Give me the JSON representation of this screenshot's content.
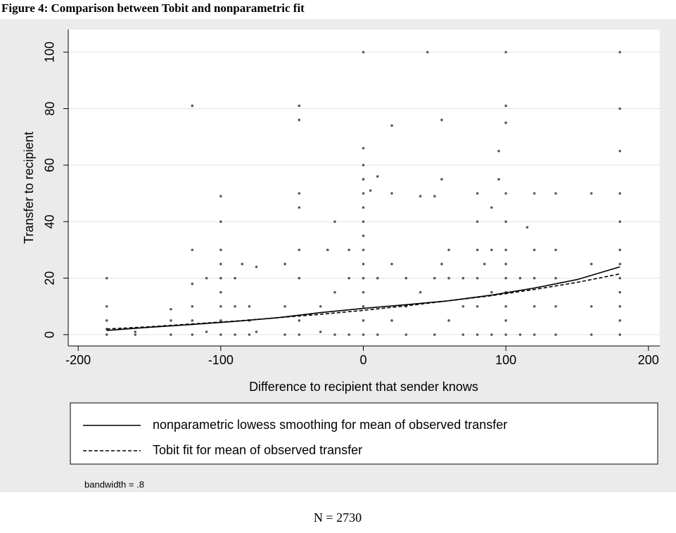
{
  "chart_data": {
    "type": "scatter",
    "title": "Figure 4: Comparison between Tobit and nonparametric fit",
    "xlabel": "Difference to recipient that sender knows",
    "ylabel": "Transfer to recipient",
    "xlim": [
      -207,
      208
    ],
    "ylim": [
      -4,
      108
    ],
    "xticks": [
      -200,
      -100,
      0,
      100,
      200
    ],
    "yticks": [
      0,
      20,
      40,
      60,
      80,
      100
    ],
    "grid": true,
    "point_color": "#5a5a5a",
    "points": {
      "x": [
        -180,
        -180,
        -180,
        -180,
        -180,
        -160,
        -160,
        -135,
        -135,
        -135,
        -120,
        -120,
        -120,
        -120,
        -120,
        -120,
        -110,
        -110,
        -100,
        -100,
        -100,
        -100,
        -100,
        -100,
        -100,
        -100,
        -100,
        -90,
        -90,
        -90,
        -85,
        -80,
        -80,
        -80,
        -75,
        -75,
        -55,
        -55,
        -55,
        -45,
        -45,
        -45,
        -45,
        -45,
        -45,
        -45,
        -45,
        -30,
        -30,
        -25,
        -20,
        -20,
        -20,
        -10,
        -10,
        -10,
        0,
        0,
        0,
        0,
        0,
        0,
        0,
        0,
        0,
        0,
        0,
        0,
        0,
        0,
        0,
        5,
        10,
        10,
        10,
        20,
        20,
        20,
        20,
        30,
        30,
        30,
        40,
        40,
        45,
        50,
        50,
        50,
        55,
        55,
        55,
        60,
        60,
        60,
        70,
        70,
        70,
        80,
        80,
        80,
        80,
        80,
        80,
        85,
        90,
        90,
        90,
        90,
        95,
        95,
        100,
        100,
        100,
        100,
        100,
        100,
        100,
        100,
        100,
        100,
        100,
        100,
        110,
        110,
        115,
        120,
        120,
        120,
        120,
        120,
        135,
        135,
        135,
        135,
        135,
        160,
        160,
        160,
        160,
        180,
        180,
        180,
        180,
        180,
        180,
        180,
        180,
        180,
        180,
        180,
        180
      ],
      "y": [
        0,
        2,
        5,
        10,
        20,
        0,
        1,
        0,
        5,
        9,
        0,
        5,
        10,
        18,
        30,
        81,
        1,
        20,
        0,
        5,
        10,
        15,
        20,
        25,
        30,
        40,
        49,
        0,
        10,
        20,
        25,
        0,
        5,
        10,
        1,
        24,
        0,
        10,
        25,
        0,
        5,
        20,
        30,
        45,
        50,
        76,
        81,
        1,
        10,
        30,
        0,
        15,
        40,
        0,
        20,
        30,
        0,
        5,
        10,
        15,
        20,
        25,
        30,
        35,
        40,
        45,
        50,
        55,
        60,
        66,
        100,
        51,
        0,
        20,
        56,
        5,
        25,
        50,
        74,
        0,
        10,
        20,
        15,
        49,
        100,
        0,
        20,
        49,
        25,
        55,
        76,
        5,
        20,
        30,
        0,
        10,
        20,
        0,
        10,
        20,
        30,
        40,
        50,
        25,
        0,
        15,
        30,
        45,
        55,
        65,
        0,
        5,
        10,
        15,
        20,
        25,
        30,
        40,
        50,
        75,
        81,
        100,
        0,
        20,
        38,
        0,
        10,
        20,
        30,
        50,
        0,
        10,
        20,
        30,
        50,
        0,
        10,
        25,
        50,
        0,
        5,
        10,
        15,
        20,
        25,
        30,
        40,
        50,
        65,
        80,
        100
      ]
    },
    "series": [
      {
        "name": "nonparametric lowess smoothing for mean of observed transfer",
        "color": "#000000",
        "dash": "solid",
        "x": [
          -180,
          -150,
          -120,
          -90,
          -60,
          -30,
          0,
          30,
          60,
          90,
          120,
          150,
          180
        ],
        "values": [
          1.5,
          2.6,
          3.6,
          4.7,
          6,
          7.8,
          9.3,
          10.6,
          12,
          14,
          16.5,
          19.5,
          24
        ]
      },
      {
        "name": "Tobit fit for mean of observed transfer",
        "color": "#000000",
        "dash": "dashed",
        "x": [
          -180,
          -150,
          -120,
          -90,
          -60,
          -30,
          0,
          30,
          60,
          90,
          120,
          150,
          180
        ],
        "values": [
          2,
          2.8,
          3.8,
          4.8,
          6,
          7.2,
          8.6,
          10.2,
          12,
          13.8,
          16,
          18.5,
          21.5
        ]
      }
    ],
    "note": "bandwidth = .8",
    "caption": "N = 2730"
  }
}
